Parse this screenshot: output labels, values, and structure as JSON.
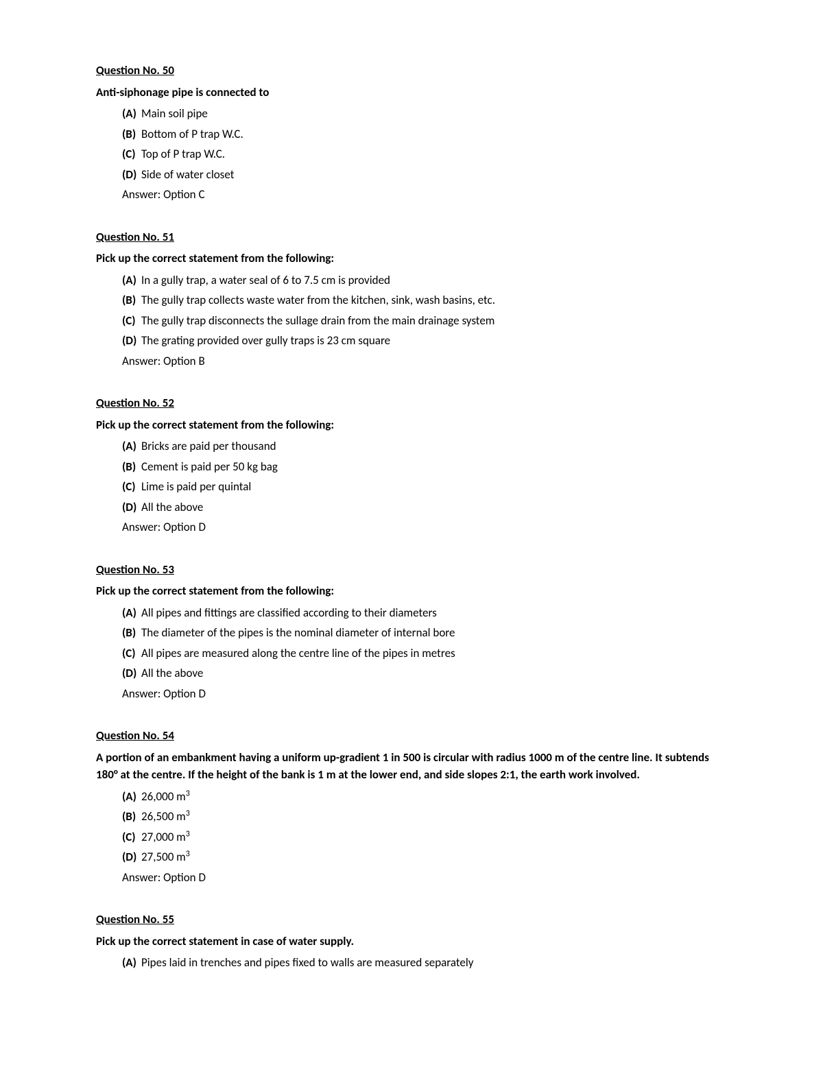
{
  "text_color": "#000000",
  "background_color": "#ffffff",
  "body_fontsize": 17,
  "questions": [
    {
      "header": "Question No. 50",
      "prompt": "Anti-siphonage pipe is connected to",
      "options": [
        {
          "marker": "(A)",
          "text": "Main soil pipe"
        },
        {
          "marker": "(B)",
          "text": "Bottom of P trap W.C."
        },
        {
          "marker": "(C)",
          "text": "Top of P trap W.C."
        },
        {
          "marker": "(D)",
          "text": "Side of water closet"
        }
      ],
      "answer": "Answer: Option C"
    },
    {
      "header": "Question No. 51",
      "prompt": "Pick up the correct statement from the following:",
      "options": [
        {
          "marker": "(A)",
          "text": "In a gully trap, a water seal of 6 to 7.5 cm is provided"
        },
        {
          "marker": "(B)",
          "text": "The gully trap collects waste water from the kitchen, sink, wash basins, etc."
        },
        {
          "marker": "(C)",
          "text": "The gully trap disconnects the sullage drain from the main drainage system"
        },
        {
          "marker": "(D)",
          "text": "The grating provided over gully traps is 23 cm square"
        }
      ],
      "answer": "Answer: Option B"
    },
    {
      "header": "Question No. 52",
      "prompt": "Pick up the correct statement from the following:",
      "options": [
        {
          "marker": "(A)",
          "text": "Bricks are paid per thousand"
        },
        {
          "marker": "(B)",
          "text": "Cement is paid per 50 kg bag"
        },
        {
          "marker": "(C)",
          "text": "Lime is paid per quintal"
        },
        {
          "marker": "(D)",
          "text": "All the above"
        }
      ],
      "answer": "Answer: Option D"
    },
    {
      "header": "Question No. 53",
      "prompt": "Pick up the correct statement from the following:",
      "options": [
        {
          "marker": "(A)",
          "text": "All pipes and fittings are classified according to their diameters"
        },
        {
          "marker": "(B)",
          "text": "The diameter of the pipes is the nominal diameter of internal bore"
        },
        {
          "marker": "(C)",
          "text": "All pipes are measured along the centre line of the pipes in metres"
        },
        {
          "marker": "(D)",
          "text": "All the above"
        }
      ],
      "answer": "Answer: Option D"
    },
    {
      "header": "Question No. 54",
      "prompt": "A portion of an embankment having a uniform up-gradient 1 in 500 is circular with radius 1000 m of the centre line. It subtends 180° at the centre. If the height of the bank is 1 m at the lower end, and side slopes 2:1, the earth work involved.",
      "options": [
        {
          "marker": "(A)",
          "text": "26,000 m",
          "sup": "3"
        },
        {
          "marker": "(B)",
          "text": "26,500 m",
          "sup": "3"
        },
        {
          "marker": "(C)",
          "text": "27,000 m",
          "sup": "3"
        },
        {
          "marker": "(D)",
          "text": "27,500 m",
          "sup": "3"
        }
      ],
      "answer": "Answer: Option D"
    },
    {
      "header": "Question No. 55",
      "prompt": "Pick up the correct statement in case of water supply.",
      "options": [
        {
          "marker": "(A)",
          "text": "Pipes laid in trenches and pipes fixed to walls are measured separately"
        }
      ],
      "answer": null
    }
  ]
}
